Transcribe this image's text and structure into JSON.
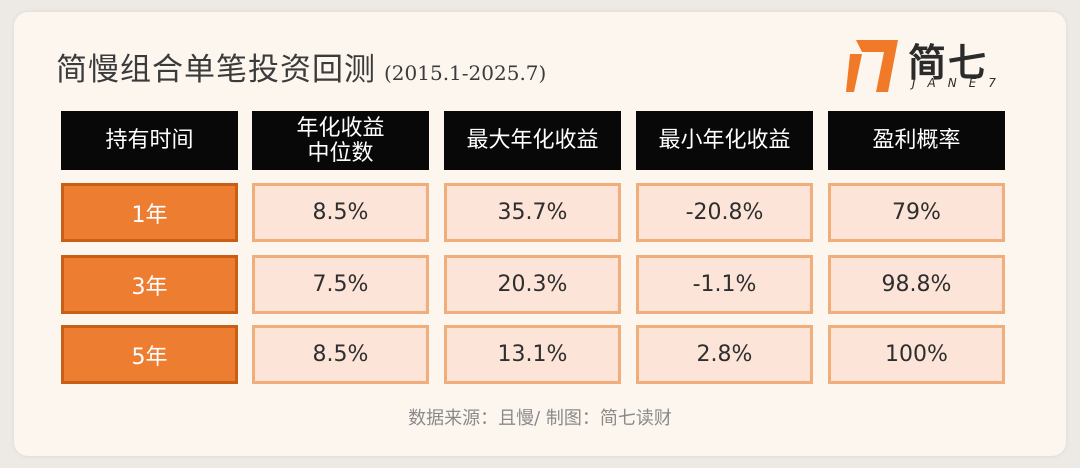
{
  "header": {
    "title": "简慢组合单笔投资回测",
    "subtitle": "(2015.1-2025.7)"
  },
  "logo": {
    "text": "简七",
    "subtext": "JANE7"
  },
  "chart_data": {
    "type": "table",
    "columns": [
      "持有时间",
      "年化收益\n中位数",
      "最大年化收益",
      "最小年化收益",
      "盈利概率"
    ],
    "rows": [
      [
        "1年",
        "8.5%",
        "35.7%",
        "-20.8%",
        "79%"
      ],
      [
        "3年",
        "7.5%",
        "20.3%",
        "-1.1%",
        "98.8%"
      ],
      [
        "5年",
        "8.5%",
        "13.1%",
        "2.8%",
        "100%"
      ]
    ]
  },
  "footer": {
    "source": "数据来源：且慢/ 制图：简七读财"
  },
  "colors": {
    "header_bg": "#080808",
    "row_label_bg": "#ed7d31",
    "cell_bg": "#fde4d8",
    "cell_border": "#f2ae7a"
  }
}
